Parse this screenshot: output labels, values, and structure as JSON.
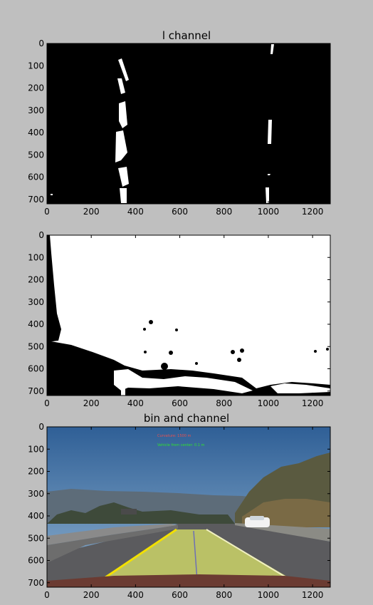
{
  "chart_data": [
    {
      "type": "image",
      "title": "l channel",
      "xlabel": "",
      "ylabel": "",
      "xlim": [
        0,
        1280
      ],
      "ylim": [
        720,
        0
      ],
      "xticks": [
        0,
        200,
        400,
        600,
        800,
        1000,
        1200
      ],
      "yticks": [
        0,
        100,
        200,
        300,
        400,
        500,
        600,
        700
      ],
      "content": "binary mask: lane lines"
    },
    {
      "type": "image",
      "title": "",
      "xlabel": "",
      "ylabel": "",
      "xlim": [
        0,
        1280
      ],
      "ylim": [
        720,
        0
      ],
      "xticks": [
        0,
        200,
        400,
        600,
        800,
        1000,
        1200
      ],
      "yticks": [
        0,
        100,
        200,
        300,
        400,
        500,
        600,
        700
      ],
      "content": "binary mask: mostly white"
    },
    {
      "type": "image",
      "title": "bin and channel",
      "xlabel": "",
      "ylabel": "",
      "xlim": [
        0,
        1280
      ],
      "ylim": [
        720,
        0
      ],
      "xticks": [
        0,
        200,
        400,
        600,
        800,
        1000,
        1200
      ],
      "yticks": [
        0,
        100,
        200,
        300,
        400,
        500,
        600,
        700
      ],
      "content": "road photo with lane overlay"
    }
  ],
  "overlay": {
    "line1": "Curvature: 1500 m",
    "line2": "Vehicle from center: 0.1 m"
  },
  "colors": {
    "figure_bg": "#bfbfbf",
    "lane_fill": "#d9e36a",
    "lane_edge": "#f2e000",
    "sky": "#4a78a8",
    "hills": "#5a6b78"
  }
}
